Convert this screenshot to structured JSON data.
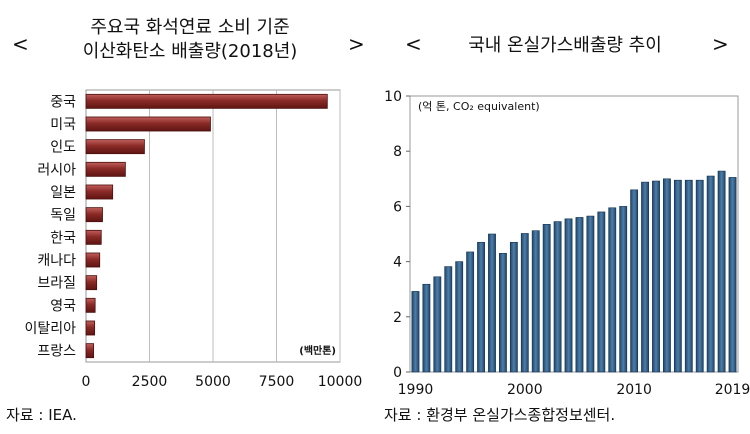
{
  "left": {
    "title_line1": "주요국 화석연료 소비 기준",
    "title_line2": "이산화탄소 배출량(2018년)",
    "prev": "<",
    "next": ">",
    "source": "자료 : IEA."
  },
  "right": {
    "title": "국내 온실가스배출량 추이",
    "prev": "<",
    "next": ">",
    "source": "자료 : 환경부 온실가스종합정보센터."
  },
  "chart_data": [
    {
      "type": "bar",
      "orientation": "horizontal",
      "categories": [
        "중국",
        "미국",
        "인도",
        "러시아",
        "일본",
        "독일",
        "한국",
        "캐나다",
        "브라질",
        "영국",
        "이탈리아",
        "프랑스"
      ],
      "values": [
        9500,
        4900,
        2300,
        1550,
        1050,
        650,
        600,
        540,
        420,
        360,
        340,
        300
      ],
      "unit_label": "(백만톤)",
      "xlim": [
        0,
        10000
      ],
      "xticks": [
        0,
        2500,
        5000,
        7500,
        10000
      ],
      "grid": true,
      "color": "#8b2a27"
    },
    {
      "type": "bar",
      "x": [
        1990,
        1991,
        1992,
        1993,
        1994,
        1995,
        1996,
        1997,
        1998,
        1999,
        2000,
        2001,
        2002,
        2003,
        2004,
        2005,
        2006,
        2007,
        2008,
        2009,
        2010,
        2011,
        2012,
        2013,
        2014,
        2015,
        2016,
        2017,
        2018,
        2019
      ],
      "values": [
        2.92,
        3.18,
        3.45,
        3.82,
        4.0,
        4.35,
        4.7,
        5.0,
        4.3,
        4.7,
        5.02,
        5.12,
        5.35,
        5.45,
        5.55,
        5.6,
        5.65,
        5.8,
        5.95,
        6.0,
        6.6,
        6.88,
        6.92,
        7.0,
        6.95,
        6.95,
        6.95,
        7.1,
        7.28,
        7.05
      ],
      "unit_label": "(억 톤, CO₂ equivalent)",
      "ylim": [
        0,
        10
      ],
      "yticks": [
        0,
        2,
        4,
        6,
        8,
        10
      ],
      "xtick_labels": [
        "1990",
        "2000",
        "2010",
        "2019"
      ],
      "grid": false,
      "color": "#2f5f8a"
    }
  ]
}
